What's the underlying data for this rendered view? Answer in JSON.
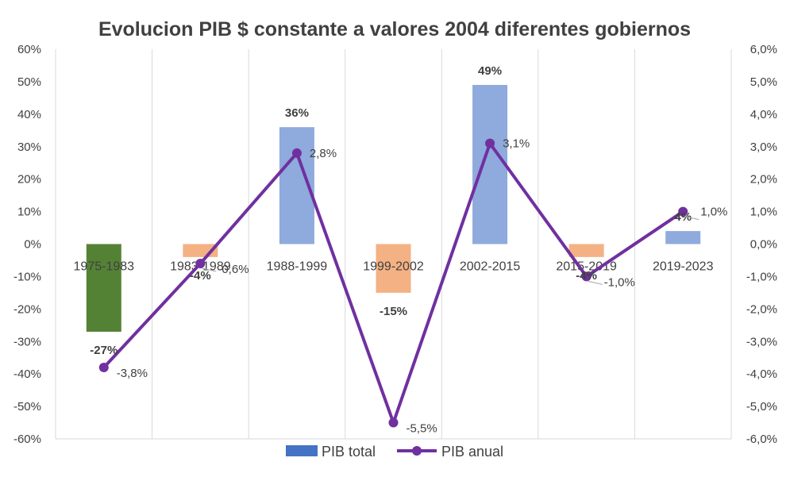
{
  "chart_data": {
    "type": "bar",
    "title": "Evolucion PIB $ constante a valores 2004 diferentes gobiernos",
    "categories": [
      "1975-1983",
      "1983-1989",
      "1988-1999",
      "1999-2002",
      "2002-2015",
      "2015-2019",
      "2019-2023"
    ],
    "series": [
      {
        "name": "PIB total",
        "type": "bar",
        "axis": "left",
        "values": [
          -27,
          -4,
          36,
          -15,
          49,
          -4,
          4
        ],
        "labels": [
          "-27%",
          "-4%",
          "36%",
          "-15%",
          "49%",
          "-4%",
          "4%"
        ],
        "colors": [
          "#548235",
          "#F4B183",
          "#8FAADC",
          "#F4B183",
          "#8FAADC",
          "#F4B183",
          "#8FAADC"
        ],
        "legend_color": "#4472C4"
      },
      {
        "name": "PIB anual",
        "type": "line",
        "axis": "right",
        "values": [
          -3.8,
          -0.6,
          2.8,
          -5.5,
          3.1,
          -1.0,
          1.0
        ],
        "labels": [
          "-3,8%",
          "-0,6%",
          "2,8%",
          "-5,5%",
          "3,1%",
          "-1,0%",
          "1,0%"
        ],
        "color": "#7030A0"
      }
    ],
    "y_left": {
      "lim": [
        -60,
        60
      ],
      "ticks": [
        60,
        50,
        40,
        30,
        20,
        10,
        0,
        -10,
        -20,
        -30,
        -40,
        -50,
        -60
      ],
      "tick_labels": [
        "60%",
        "50%",
        "40%",
        "30%",
        "20%",
        "10%",
        "0%",
        "-10%",
        "-20%",
        "-30%",
        "-40%",
        "-50%",
        "-60%"
      ]
    },
    "y_right": {
      "lim": [
        -6,
        6
      ],
      "ticks": [
        6,
        5,
        4,
        3,
        2,
        1,
        0,
        -1,
        -2,
        -3,
        -4,
        -5,
        -6
      ],
      "tick_labels": [
        "6,0%",
        "5,0%",
        "4,0%",
        "3,0%",
        "2,0%",
        "1,0%",
        "0,0%",
        "-1,0%",
        "-2,0%",
        "-3,0%",
        "-4,0%",
        "-5,0%",
        "-6,0%"
      ]
    },
    "grid": "vertical",
    "legend_position": "bottom"
  }
}
